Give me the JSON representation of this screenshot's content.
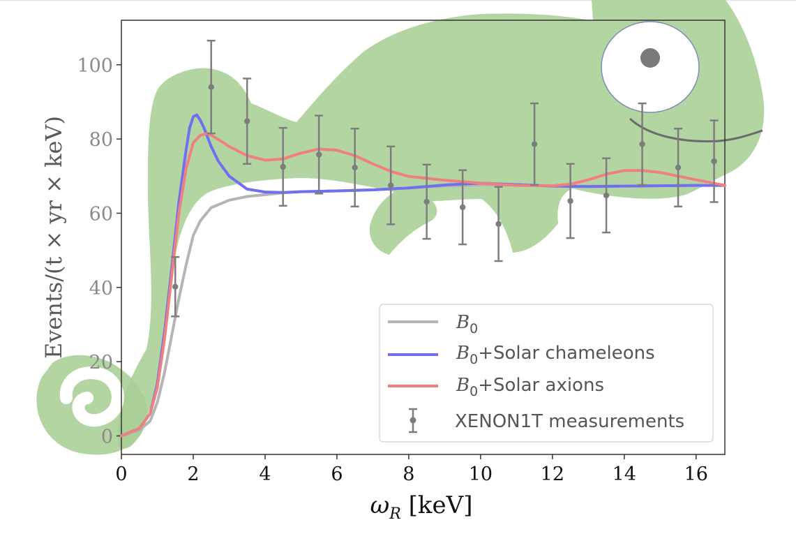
{
  "chart_data": {
    "type": "line",
    "xlabel_symbol": "ω",
    "xlabel_sub": "R",
    "xlabel_unit": " [keV]",
    "ylabel": "Events/(t × yr × keV)",
    "xlim": [
      0,
      16.8
    ],
    "ylim": [
      -5,
      112
    ],
    "xticks": [
      0,
      2,
      4,
      6,
      8,
      10,
      12,
      14,
      16
    ],
    "yticks": [
      0,
      20,
      40,
      60,
      80,
      100
    ],
    "grid": false,
    "legend_position": "lower-right",
    "series": [
      {
        "key": "b0",
        "label_sym": "B",
        "label_sub": "0",
        "label_rest": "",
        "color": "#b5b5b5",
        "x": [
          0,
          0.5,
          0.8,
          1.0,
          1.2,
          1.4,
          1.6,
          1.8,
          2.0,
          2.2,
          2.5,
          3.0,
          3.5,
          4.0,
          4.5,
          5,
          6,
          7,
          8,
          9,
          10,
          11,
          12,
          13,
          14,
          15,
          16,
          16.8
        ],
        "y": [
          0,
          1.5,
          4,
          9,
          17,
          27,
          37,
          46,
          54,
          58,
          61.5,
          63.5,
          64.5,
          65,
          65.5,
          65.8,
          66,
          66.3,
          66.8,
          67.3,
          67.6,
          67.6,
          67.4,
          67.3,
          67.3,
          67.4,
          67.5,
          67.5
        ]
      },
      {
        "key": "cham",
        "label_sym": "B",
        "label_sub": "0",
        "label_rest": "+Solar chameleons",
        "color": "#6f6ff0",
        "x": [
          0,
          0.5,
          0.8,
          1.0,
          1.2,
          1.4,
          1.6,
          1.8,
          1.9,
          2.0,
          2.1,
          2.2,
          2.3,
          2.5,
          2.7,
          3.0,
          3.5,
          4.0,
          4.5,
          5,
          6,
          7,
          8,
          9,
          10,
          11,
          12,
          13,
          14,
          15,
          16,
          16.8
        ],
        "y": [
          0,
          2,
          6,
          14,
          28,
          45,
          63,
          77,
          83,
          86,
          86.5,
          85,
          83,
          78,
          74,
          70,
          66.5,
          65.7,
          65.6,
          65.8,
          66,
          66.3,
          66.8,
          67.6,
          68.1,
          67.7,
          67.3,
          67.2,
          67.3,
          67.4,
          67.5,
          67.5
        ]
      },
      {
        "key": "axion",
        "label_sym": "B",
        "label_sub": "0",
        "label_rest": "+Solar axions",
        "color": "#f08080",
        "x": [
          0,
          0.5,
          0.8,
          1.0,
          1.2,
          1.4,
          1.6,
          1.8,
          2.0,
          2.2,
          2.4,
          2.6,
          3.0,
          3.5,
          4.0,
          4.5,
          5.0,
          5.5,
          6.0,
          6.5,
          7.0,
          7.5,
          8.0,
          9.0,
          10.0,
          11.0,
          12.0,
          12.5,
          13.0,
          13.5,
          14.0,
          14.5,
          15.0,
          15.5,
          16.0,
          16.8
        ],
        "y": [
          0,
          2,
          6,
          13,
          26,
          43,
          60,
          72,
          79,
          81,
          81.5,
          80.5,
          78,
          75.5,
          74.3,
          74.6,
          76.2,
          77.3,
          77,
          75.5,
          73.3,
          71.3,
          69.9,
          68.9,
          68.1,
          67.5,
          67.4,
          67.8,
          69,
          70.5,
          71.5,
          71.5,
          71,
          70,
          69,
          67.5
        ]
      }
    ],
    "measurements": {
      "label": "XENON1T measurements",
      "color": "#7d7d7d",
      "x": [
        1.5,
        2.5,
        3.5,
        4.5,
        5.5,
        6.5,
        7.5,
        8.5,
        9.5,
        10.5,
        11.5,
        12.5,
        13.5,
        14.5,
        15.5,
        16.5
      ],
      "y": [
        40.2,
        94.0,
        84.8,
        72.5,
        75.8,
        72.3,
        67.5,
        63.1,
        61.6,
        57.1,
        78.6,
        63.3,
        64.8,
        78.6,
        72.3,
        74.0
      ],
      "err": [
        8,
        12.5,
        11.5,
        10.5,
        10.5,
        10.5,
        10.5,
        10,
        10,
        10,
        11,
        10,
        10,
        11,
        10.5,
        11
      ]
    }
  }
}
